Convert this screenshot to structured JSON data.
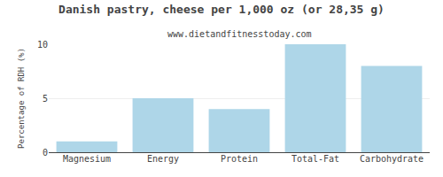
{
  "chart_data": {
    "type": "bar",
    "title": "Danish pastry, cheese per 1,000 oz (or 28,35 g)",
    "subtitle": "www.dietandfitnesstoday.com",
    "categories": [
      "Magnesium",
      "Energy",
      "Protein",
      "Total-Fat",
      "Carbohydrate"
    ],
    "values": [
      1.0,
      5.0,
      4.0,
      10.0,
      8.0
    ],
    "color": "#aed6e8",
    "ylabel": "Percentage of RDH (%)",
    "ylim": [
      0,
      10
    ],
    "yticks": [
      0,
      5,
      10
    ],
    "grid": true
  }
}
